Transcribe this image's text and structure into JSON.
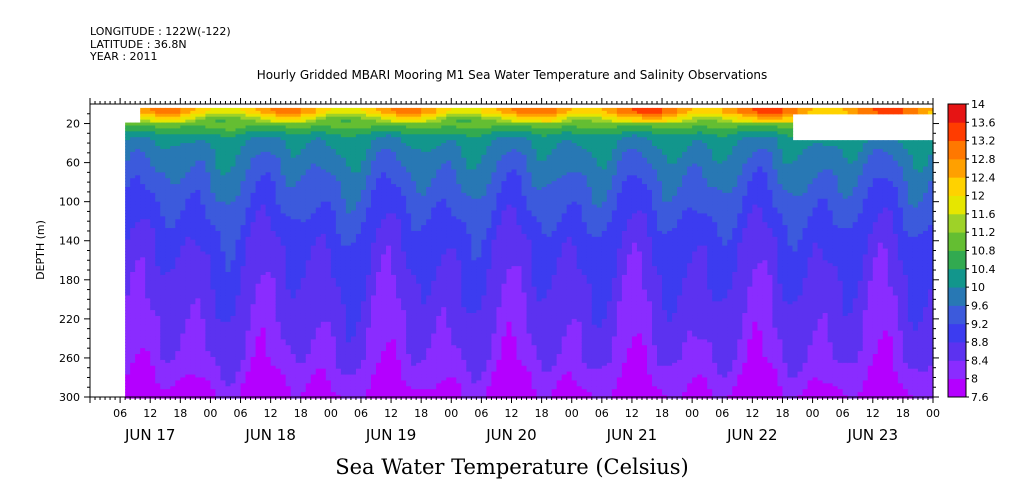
{
  "header": {
    "longitude": "LONGITUDE : 122W(-122)",
    "latitude": "LATITUDE : 36.8N",
    "year": "YEAR : 2011"
  },
  "chart_data": {
    "type": "heatmap",
    "title": "Hourly Gridded MBARI Mooring M1 Sea Water Temperature and Salinity Observations",
    "xlabel": "Sea Water Temperature (Celsius)",
    "ylabel": "DEPTH (m)",
    "x_unit": "hours since 2011-06-17 00:00",
    "xlim": [
      0,
      168
    ],
    "ylim": [
      300,
      0
    ],
    "hour_ticks": [
      "06",
      "12",
      "18",
      "00",
      "06",
      "12",
      "18",
      "00",
      "06",
      "12",
      "18",
      "00",
      "06",
      "12",
      "18",
      "00",
      "06",
      "12",
      "18",
      "00",
      "06",
      "12",
      "18",
      "00",
      "06",
      "12",
      "18",
      "00"
    ],
    "hour_tick_x": [
      6,
      12,
      18,
      24,
      30,
      36,
      42,
      48,
      54,
      60,
      66,
      72,
      78,
      84,
      90,
      96,
      102,
      108,
      114,
      120,
      126,
      132,
      138,
      144,
      150,
      156,
      162,
      168
    ],
    "day_labels": [
      "JUN 17",
      "JUN 18",
      "JUN 19",
      "JUN 20",
      "JUN 21",
      "JUN 22",
      "JUN 23"
    ],
    "day_label_x": [
      12,
      36,
      60,
      84,
      108,
      132,
      156
    ],
    "y_ticks": [
      20,
      60,
      100,
      140,
      180,
      220,
      260,
      300
    ],
    "colorbar": {
      "levels": [
        7.6,
        8,
        8.4,
        8.8,
        9.2,
        9.6,
        10,
        10.4,
        10.8,
        11.2,
        11.6,
        12,
        12.4,
        12.8,
        13.2,
        13.6,
        14
      ],
      "labels": [
        "7.6",
        "8",
        "8.4",
        "8.8",
        "9.2",
        "9.6",
        "10",
        "10.4",
        "10.8",
        "11.2",
        "11.6",
        "12",
        "12.4",
        "12.8",
        "13.2",
        "13.6",
        "14"
      ],
      "colors": [
        "#b400ff",
        "#8a2cff",
        "#5c32f0",
        "#3c3cf0",
        "#3c5adc",
        "#2878b4",
        "#12968c",
        "#32aa50",
        "#64be32",
        "#9ed228",
        "#e6e600",
        "#ffd200",
        "#ffa000",
        "#ff7800",
        "#ff3c00",
        "#e61414"
      ]
    },
    "no_data": [
      {
        "x": [
          0,
          7
        ],
        "depth": [
          0,
          300
        ]
      },
      {
        "x": [
          7,
          10.5
        ],
        "depth": [
          0,
          18
        ]
      },
      {
        "x": [
          140,
          168
        ],
        "depth": [
          10,
          38
        ]
      }
    ],
    "profile": {
      "depth": [
        8,
        14,
        22,
        35,
        55,
        80,
        110,
        140,
        180,
        220,
        260,
        285,
        300
      ],
      "temperature": [
        12.4,
        11.6,
        10.9,
        10.1,
        9.8,
        9.5,
        9.2,
        8.9,
        8.7,
        8.5,
        8.3,
        8.0,
        7.8
      ]
    }
  }
}
